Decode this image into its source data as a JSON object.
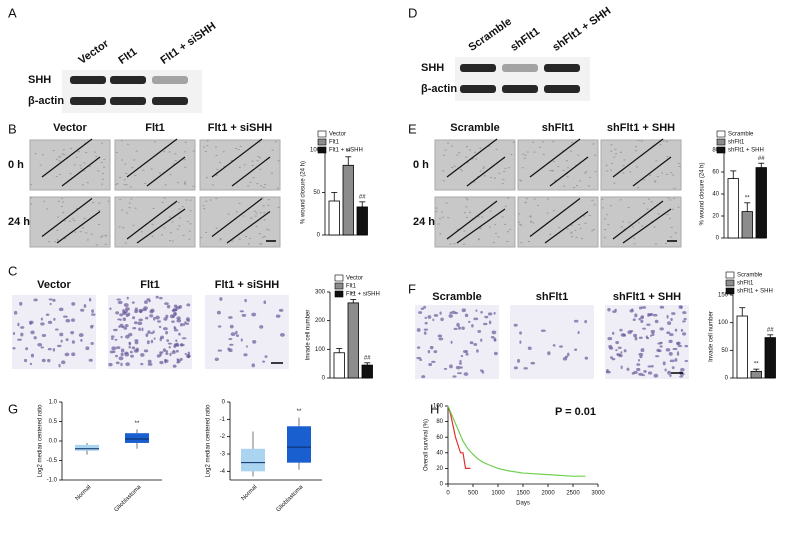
{
  "panels": {
    "A": {
      "letter": "A",
      "lanes": [
        "Vector",
        "Flt1",
        "Flt1 + siSHH"
      ],
      "rows": [
        "SHH",
        "β-actin"
      ]
    },
    "D": {
      "letter": "D",
      "lanes": [
        "Scramble",
        "shFlt1",
        "shFlt1 + SHH"
      ],
      "rows": [
        "SHH",
        "β-actin"
      ]
    },
    "B": {
      "letter": "B",
      "columns": [
        "Vector",
        "Flt1",
        "Flt1 + siSHH"
      ],
      "rows": [
        "0 h",
        "24 h"
      ]
    },
    "E": {
      "letter": "E",
      "columns": [
        "Scramble",
        "shFlt1",
        "shFlt1 + SHH"
      ],
      "rows": [
        "0 h",
        "24 h"
      ]
    },
    "C": {
      "letter": "C",
      "columns": [
        "Vector",
        "Flt1",
        "Flt1 + siSHH"
      ]
    },
    "F": {
      "letter": "F",
      "columns": [
        "Scramble",
        "shFlt1",
        "shFlt1 + SHH"
      ]
    },
    "G": {
      "letter": "G"
    },
    "H": {
      "letter": "H"
    }
  },
  "chart_data": [
    {
      "type": "bar",
      "ylabel": "% wound closure (24 h)",
      "categories": [
        "Vector",
        "Flt1",
        "Flt1 + siSHH"
      ],
      "values": [
        40,
        82,
        33
      ],
      "errors": [
        10,
        10,
        6
      ],
      "colors": [
        "#ffffff",
        "#8c8c8c",
        "#111111"
      ],
      "markers": [
        null,
        "**",
        "##"
      ],
      "ylim": [
        0,
        100
      ],
      "yticks": [
        0,
        50,
        100
      ]
    },
    {
      "type": "bar",
      "ylabel": "Invade cell number",
      "categories": [
        "Vector",
        "Flt1",
        "Flt1 + siSHH"
      ],
      "values": [
        88,
        262,
        45
      ],
      "errors": [
        15,
        12,
        8
      ],
      "colors": [
        "#ffffff",
        "#8c8c8c",
        "#111111"
      ],
      "markers": [
        null,
        "**",
        "##"
      ],
      "ylim": [
        0,
        300
      ],
      "yticks": [
        0,
        100,
        200,
        300
      ]
    },
    {
      "type": "bar",
      "ylabel": "% wound closure (24 h)",
      "categories": [
        "Scramble",
        "shFlt1",
        "shFlt1 + SHH"
      ],
      "values": [
        54,
        24,
        64
      ],
      "errors": [
        7,
        8,
        4
      ],
      "colors": [
        "#ffffff",
        "#8c8c8c",
        "#111111"
      ],
      "markers": [
        null,
        "**",
        "##"
      ],
      "ylim": [
        0,
        80
      ],
      "yticks": [
        0,
        20,
        40,
        60,
        80
      ]
    },
    {
      "type": "bar",
      "ylabel": "Invade cell number",
      "categories": [
        "Scramble",
        "shFlt1",
        "shFlt1 + SHH"
      ],
      "values": [
        112,
        12,
        73
      ],
      "errors": [
        15,
        4,
        5
      ],
      "colors": [
        "#ffffff",
        "#8c8c8c",
        "#111111"
      ],
      "markers": [
        null,
        "**",
        "##"
      ],
      "ylim": [
        0,
        150
      ],
      "yticks": [
        0,
        50,
        100,
        150
      ]
    },
    {
      "type": "box",
      "ylabel": "Log2 median centered ratio",
      "categories": [
        "Normal",
        "Glioblastoma"
      ],
      "boxes": [
        {
          "low": -0.35,
          "q1": -0.25,
          "median": -0.2,
          "q3": -0.1,
          "high": -0.05
        },
        {
          "low": -0.2,
          "q1": -0.05,
          "median": 0.05,
          "q3": 0.2,
          "high": 0.3
        }
      ],
      "colors": [
        "#aad4f0",
        "#1a5fd0"
      ],
      "markers": [
        null,
        "**"
      ],
      "ylim": [
        -1,
        1
      ],
      "yticks": [
        {
          "value": -1,
          "label": "-1.0"
        },
        -0.5,
        {
          "value": 0,
          "label": "0.0"
        },
        0.5,
        {
          "value": 1,
          "label": "1.0"
        }
      ]
    },
    {
      "type": "box",
      "ylabel": "Log2 median centered ratio",
      "categories": [
        "Normal",
        "Glioblastoma"
      ],
      "boxes": [
        {
          "low": -4.3,
          "q1": -4.0,
          "median": -3.5,
          "q3": -2.7,
          "high": -1.7
        },
        {
          "low": -3.9,
          "q1": -3.5,
          "median": -2.6,
          "q3": -1.4,
          "high": -0.9
        }
      ],
      "colors": [
        "#aad4f0",
        "#1a5fd0"
      ],
      "markers": [
        null,
        "**"
      ],
      "ylim": [
        -4.5,
        0
      ],
      "yticks": [
        -4,
        -3,
        -2,
        -1,
        0
      ]
    },
    {
      "type": "line",
      "ylabel": "Overall survival (%)",
      "xlabel": "Days",
      "annotation": "P = 0.01",
      "series": [
        {
          "color": "#e03030",
          "x": [
            0,
            50,
            100,
            150,
            200,
            250,
            300,
            350,
            400,
            450
          ],
          "values": [
            100,
            90,
            75,
            60,
            50,
            40,
            40,
            20,
            20,
            20
          ]
        },
        {
          "color": "#6fd050",
          "x": [
            0,
            100,
            200,
            300,
            400,
            500,
            600,
            700,
            800,
            1000,
            1200,
            1500,
            2000,
            2500,
            2750
          ],
          "values": [
            100,
            85,
            70,
            55,
            45,
            38,
            32,
            28,
            25,
            20,
            17,
            14,
            12,
            10,
            10
          ]
        }
      ],
      "xlim": [
        0,
        3000
      ],
      "xticks": [
        0,
        500,
        1000,
        1500,
        2000,
        2500,
        3000
      ],
      "ylim": [
        0,
        100
      ],
      "yticks": [
        0,
        20,
        40,
        60,
        80,
        100
      ]
    }
  ]
}
